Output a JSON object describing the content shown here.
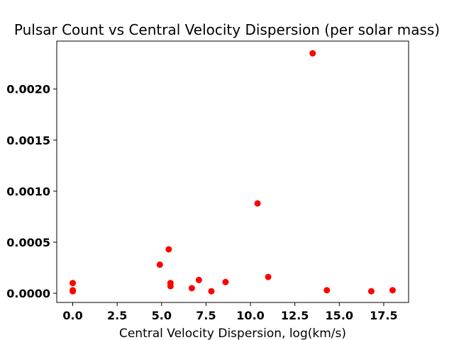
{
  "chart_data": {
    "type": "scatter",
    "title": "Pulsar Count vs Central Velocity Dispersion (per solar mass)",
    "xlabel": "Central Velocity Dispersion, log(km/s)",
    "ylabel": "",
    "xlim": [
      -0.9,
      18.9
    ],
    "ylim": [
      -9e-05,
      0.00247
    ],
    "x_ticks": [
      0.0,
      2.5,
      5.0,
      7.5,
      10.0,
      12.5,
      15.0,
      17.5
    ],
    "x_tick_labels": [
      "0.0",
      "2.5",
      "5.0",
      "7.5",
      "10.0",
      "12.5",
      "15.0",
      "17.5"
    ],
    "y_ticks": [
      0.0,
      0.0005,
      0.001,
      0.0015,
      0.002
    ],
    "y_tick_labels": [
      "0.0000",
      "0.0005",
      "0.0010",
      "0.0015",
      "0.0020"
    ],
    "grid": false,
    "marker_color": "#ff0000",
    "series": [
      {
        "points": [
          {
            "x": 0.0,
            "y": 0.0001
          },
          {
            "x": 0.0,
            "y": 3e-05
          },
          {
            "x": 0.0,
            "y": 2e-05
          },
          {
            "x": 4.9,
            "y": 0.00028
          },
          {
            "x": 5.4,
            "y": 0.00043
          },
          {
            "x": 5.5,
            "y": 0.0001
          },
          {
            "x": 5.5,
            "y": 7e-05
          },
          {
            "x": 6.7,
            "y": 5e-05
          },
          {
            "x": 7.1,
            "y": 0.00013
          },
          {
            "x": 7.8,
            "y": 2e-05
          },
          {
            "x": 8.6,
            "y": 0.00011
          },
          {
            "x": 10.4,
            "y": 0.00088
          },
          {
            "x": 11.0,
            "y": 0.00016
          },
          {
            "x": 13.5,
            "y": 0.00235
          },
          {
            "x": 14.3,
            "y": 3e-05
          },
          {
            "x": 16.8,
            "y": 2e-05
          },
          {
            "x": 18.0,
            "y": 3e-05
          }
        ]
      }
    ]
  }
}
